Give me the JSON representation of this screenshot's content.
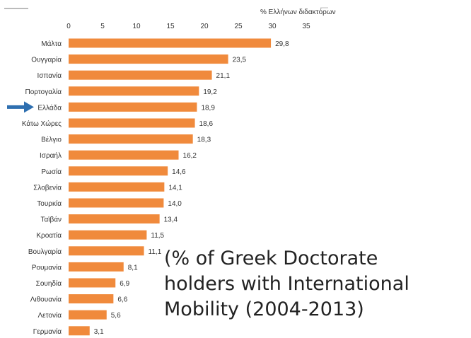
{
  "chart_data": {
    "type": "bar",
    "orientation": "horizontal",
    "unit_label": "% Ελλήνων διδακτόρων",
    "categories": [
      "Μάλτα",
      "Ουγγαρία",
      "Ισπανία",
      "Πορτογαλία",
      "Ελλάδα",
      "Κάτω Χώρες",
      "Βέλγιο",
      "Ισραήλ",
      "Ρωσία",
      "Σλοβενία",
      "Τουρκία",
      "Ταϊβάν",
      "Κροατία",
      "Βουλγαρία",
      "Ρουμανία",
      "Σουηδία",
      "Λιθουανία",
      "Λετονία",
      "Γερμανία"
    ],
    "values": [
      29.8,
      23.5,
      21.1,
      19.2,
      18.9,
      18.6,
      18.3,
      16.2,
      14.6,
      14.1,
      14.0,
      13.4,
      11.5,
      11.1,
      8.1,
      6.9,
      6.6,
      5.6,
      3.1
    ],
    "value_labels": [
      "29,8",
      "23,5",
      "21,1",
      "19,2",
      "18,9",
      "18,6",
      "18,3",
      "16,2",
      "14,6",
      "14,1",
      "14,0",
      "13,4",
      "11,5",
      "11,1",
      "8,1",
      "6,9",
      "6,6",
      "5,6",
      "3,1"
    ],
    "xticks": [
      "0",
      "5",
      "10",
      "15",
      "20",
      "25",
      "30",
      "35"
    ],
    "xlim": [
      0,
      35
    ],
    "highlight_category": "Ελλάδα",
    "bar_color": "#f08a3c",
    "highlight_arrow_color": "#2e6fb0"
  },
  "caption": "(% of Greek Doctorate\nholders with International\nMobility (2004-2013)"
}
